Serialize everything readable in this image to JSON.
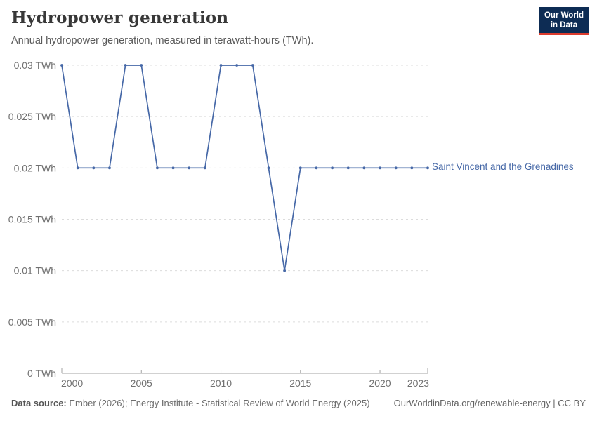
{
  "header": {
    "logo": {
      "line1": "Our World",
      "line2": "in Data",
      "bg_color": "#0d2c54",
      "bar_color": "#dc3c2e"
    }
  },
  "chart_data": {
    "type": "line",
    "title": "Hydropower generation",
    "subtitle": "Annual hydropower generation, measured in terawatt-hours (TWh).",
    "unit": "TWh",
    "x": [
      2000,
      2001,
      2002,
      2003,
      2004,
      2005,
      2006,
      2007,
      2008,
      2009,
      2010,
      2011,
      2012,
      2013,
      2014,
      2015,
      2016,
      2017,
      2018,
      2019,
      2020,
      2021,
      2022,
      2023
    ],
    "series": [
      {
        "name": "Saint Vincent and the Grenadines",
        "color": "#4668a7",
        "values": [
          0.03,
          0.02,
          0.02,
          0.02,
          0.03,
          0.03,
          0.02,
          0.02,
          0.02,
          0.02,
          0.03,
          0.03,
          0.03,
          0.02,
          0.01,
          0.02,
          0.02,
          0.02,
          0.02,
          0.02,
          0.02,
          0.02,
          0.02,
          0.02
        ]
      }
    ],
    "xlim": [
      2000,
      2023
    ],
    "ylim": [
      0,
      0.03
    ],
    "x_ticks": [
      {
        "value": 2000,
        "label": "2000"
      },
      {
        "value": 2005,
        "label": "2005"
      },
      {
        "value": 2010,
        "label": "2010"
      },
      {
        "value": 2015,
        "label": "2015"
      },
      {
        "value": 2020,
        "label": "2020"
      },
      {
        "value": 2023,
        "label": "2023"
      }
    ],
    "y_ticks": [
      {
        "value": 0,
        "label": "0 TWh"
      },
      {
        "value": 0.005,
        "label": "0.005 TWh"
      },
      {
        "value": 0.01,
        "label": "0.01 TWh"
      },
      {
        "value": 0.015,
        "label": "0.015 TWh"
      },
      {
        "value": 0.02,
        "label": "0.02 TWh"
      },
      {
        "value": 0.025,
        "label": "0.025 TWh"
      },
      {
        "value": 0.03,
        "label": "0.03 TWh"
      }
    ],
    "grid": "horizontal-dashed",
    "legend_position": "end-of-line"
  },
  "footer": {
    "datasource_label": "Data source:",
    "datasource_text": " Ember (2026); Energy Institute - Statistical Review of World Energy (2025)",
    "credit": "OurWorldinData.org/renewable-energy | CC BY"
  }
}
